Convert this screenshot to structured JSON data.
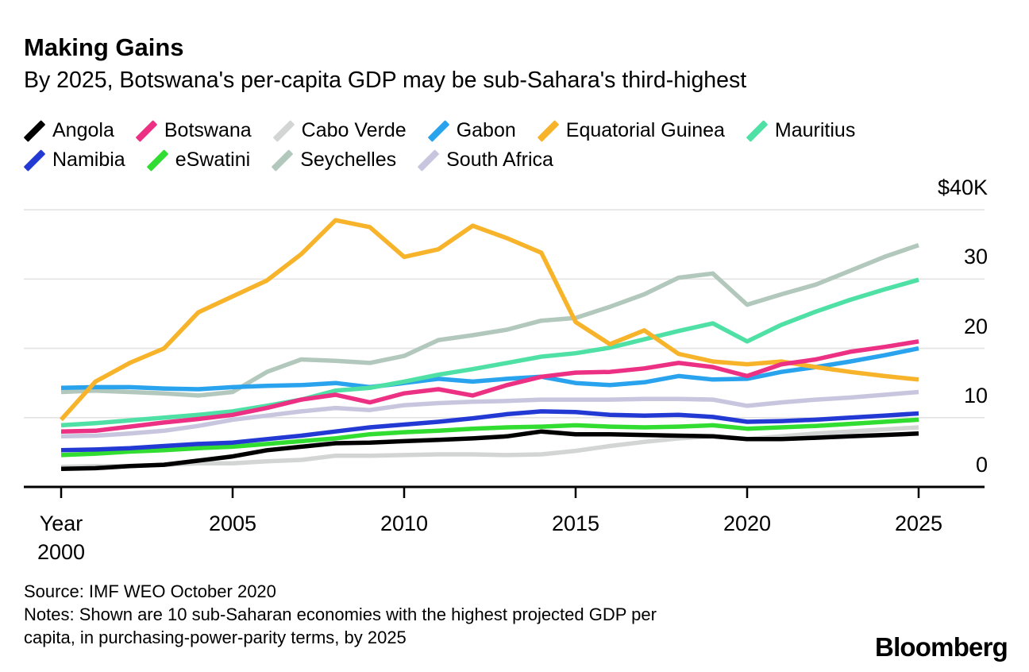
{
  "header": {
    "title": "Making Gains",
    "subtitle": "By 2025, Botswana's per-capita GDP may be sub-Sahara's third-highest"
  },
  "chart_data": {
    "type": "line",
    "title": "Making Gains",
    "subtitle": "By 2025, Botswana's per-capita GDP may be sub-Sahara's third-highest",
    "y_unit": "$K",
    "ylim": [
      0,
      41.5
    ],
    "grid": "horizontal",
    "legend_position": "top",
    "x": [
      2000,
      2001,
      2002,
      2003,
      2004,
      2005,
      2006,
      2007,
      2008,
      2009,
      2010,
      2011,
      2012,
      2013,
      2014,
      2015,
      2016,
      2017,
      2018,
      2019,
      2020,
      2021,
      2022,
      2023,
      2024,
      2025
    ],
    "x_ticks": [
      {
        "x": 2000,
        "lines": [
          "Year",
          "2000"
        ]
      },
      {
        "x": 2005,
        "lines": [
          "2005"
        ]
      },
      {
        "x": 2010,
        "lines": [
          "2010"
        ]
      },
      {
        "x": 2015,
        "lines": [
          "2015"
        ]
      },
      {
        "x": 2020,
        "lines": [
          "2020"
        ]
      },
      {
        "x": 2025,
        "lines": [
          "2025"
        ]
      }
    ],
    "y_ticks": [
      {
        "v": 0,
        "label": "0"
      },
      {
        "v": 10,
        "label": "10"
      },
      {
        "v": 20,
        "label": "20"
      },
      {
        "v": 30,
        "label": "30"
      },
      {
        "v": 40,
        "label": "$40K"
      }
    ],
    "series": [
      {
        "name": "Angola",
        "color": "#000000",
        "values": [
          2.6,
          2.7,
          3.0,
          3.2,
          3.8,
          4.4,
          5.3,
          5.8,
          6.3,
          6.4,
          6.6,
          6.8,
          7.0,
          7.3,
          8.0,
          7.6,
          7.6,
          7.5,
          7.4,
          7.3,
          6.9,
          6.9,
          7.1,
          7.3,
          7.5,
          7.7
        ]
      },
      {
        "name": "Botswana",
        "color": "#ec3084",
        "values": [
          8.0,
          8.1,
          8.7,
          9.3,
          9.8,
          10.4,
          11.4,
          12.6,
          13.3,
          12.2,
          13.5,
          14.1,
          13.2,
          14.7,
          15.9,
          16.5,
          16.6,
          17.1,
          17.9,
          17.3,
          16.0,
          17.7,
          18.4,
          19.5,
          20.2,
          21.0
        ]
      },
      {
        "name": "Cabo Verde",
        "color": "#d3d5d5",
        "values": [
          2.9,
          3.0,
          3.0,
          3.2,
          3.4,
          3.4,
          3.7,
          3.9,
          4.5,
          4.5,
          4.6,
          4.7,
          4.7,
          4.6,
          4.7,
          5.2,
          5.9,
          6.5,
          7.0,
          7.3,
          6.9,
          7.3,
          7.7,
          8.0,
          8.3,
          8.6
        ]
      },
      {
        "name": "Gabon",
        "color": "#2aa3ee",
        "values": [
          14.3,
          14.4,
          14.4,
          14.2,
          14.1,
          14.4,
          14.6,
          14.7,
          15.0,
          14.4,
          15.0,
          15.6,
          15.2,
          15.6,
          15.9,
          15.0,
          14.7,
          15.1,
          16.0,
          15.5,
          15.6,
          16.6,
          17.3,
          18.1,
          19.0,
          20.0
        ]
      },
      {
        "name": "Equatorial Guinea",
        "color": "#f7b32a",
        "values": [
          9.7,
          15.2,
          17.9,
          20.0,
          25.2,
          27.5,
          29.8,
          33.6,
          38.5,
          37.5,
          33.2,
          34.3,
          37.7,
          35.9,
          33.8,
          23.8,
          20.6,
          22.6,
          19.2,
          18.1,
          17.7,
          18.1,
          17.3,
          16.6,
          16.0,
          15.5
        ]
      },
      {
        "name": "Mauritius",
        "color": "#4ee0a4",
        "values": [
          8.9,
          9.2,
          9.6,
          10.0,
          10.4,
          10.9,
          11.7,
          12.6,
          13.9,
          14.3,
          15.2,
          16.2,
          17.0,
          17.9,
          18.8,
          19.3,
          20.1,
          21.3,
          22.5,
          23.6,
          21.0,
          23.4,
          25.3,
          27.0,
          28.5,
          29.9
        ]
      },
      {
        "name": "Namibia",
        "color": "#2339d4",
        "values": [
          5.3,
          5.4,
          5.6,
          5.9,
          6.2,
          6.4,
          6.9,
          7.4,
          8.0,
          8.6,
          9.0,
          9.4,
          9.9,
          10.5,
          10.9,
          10.8,
          10.4,
          10.3,
          10.4,
          10.1,
          9.4,
          9.5,
          9.7,
          10.0,
          10.3,
          10.6
        ]
      },
      {
        "name": "eSwatini",
        "color": "#30dd30",
        "values": [
          4.6,
          4.8,
          5.1,
          5.3,
          5.6,
          5.8,
          6.2,
          6.6,
          7.0,
          7.6,
          7.9,
          8.1,
          8.4,
          8.6,
          8.7,
          8.9,
          8.7,
          8.6,
          8.7,
          8.9,
          8.4,
          8.6,
          8.8,
          9.1,
          9.4,
          9.7
        ]
      },
      {
        "name": "Seychelles",
        "color": "#b2c8bc",
        "values": [
          13.7,
          13.9,
          13.7,
          13.5,
          13.2,
          13.7,
          16.6,
          18.4,
          18.2,
          17.9,
          18.9,
          21.2,
          21.9,
          22.7,
          24.0,
          24.4,
          26.0,
          27.8,
          30.2,
          30.8,
          26.3,
          27.8,
          29.2,
          31.2,
          33.2,
          34.9
        ]
      },
      {
        "name": "South Africa",
        "color": "#c8c6de",
        "values": [
          7.3,
          7.4,
          7.7,
          8.1,
          8.8,
          9.7,
          10.3,
          10.9,
          11.4,
          11.1,
          11.8,
          12.1,
          12.3,
          12.4,
          12.6,
          12.6,
          12.6,
          12.7,
          12.7,
          12.6,
          11.7,
          12.2,
          12.6,
          12.9,
          13.3,
          13.7
        ]
      }
    ]
  },
  "footer": {
    "source": "Source: IMF WEO October 2020",
    "notes_lines": [
      "Notes: Shown are 10 sub-Saharan economies with the highest projected GDP per",
      "capita, in purchasing-power-parity terms, by 2025"
    ]
  },
  "branding": {
    "wordmark": "Bloomberg"
  }
}
